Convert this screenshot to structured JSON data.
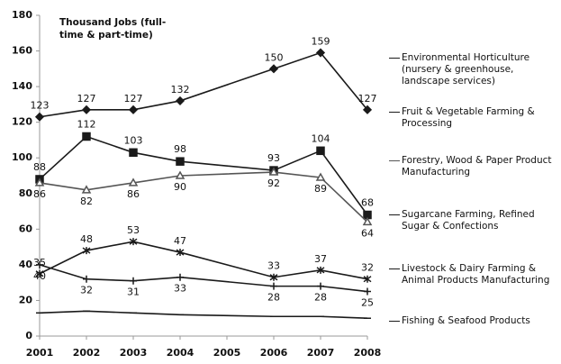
{
  "chart_data": {
    "type": "line",
    "annotation": "Thousand Jobs (full-time & part-time)",
    "x": [
      2001,
      2002,
      2003,
      2004,
      2006,
      2007,
      2008
    ],
    "xlim": [
      2001,
      2008
    ],
    "xticks": [
      2001,
      2002,
      2003,
      2004,
      2005,
      2006,
      2007,
      2008
    ],
    "ylim": [
      0,
      180
    ],
    "yticks": [
      0,
      20,
      40,
      60,
      80,
      100,
      120,
      140,
      160,
      180
    ],
    "grid": false,
    "series": [
      {
        "name": "Environmental Horticulture (nursery & greenhouse, landscape services)",
        "color": "#1a1a1a",
        "marker": "diamond",
        "data_labels": true,
        "values": [
          123,
          127,
          127,
          132,
          150,
          159,
          127
        ]
      },
      {
        "name": "Fruit & Vegetable Farming & Processing",
        "color": "#1a1a1a",
        "marker": "square",
        "data_labels": true,
        "values": [
          88,
          112,
          103,
          98,
          93,
          104,
          68
        ]
      },
      {
        "name": "Forestry, Wood & Paper Product Manufacturing",
        "color": "#555555",
        "marker": "triangle",
        "data_labels": true,
        "values": [
          86,
          82,
          86,
          90,
          92,
          89,
          64
        ]
      },
      {
        "name": "Sugarcane Farming, Refined Sugar & Confections",
        "color": "#1a1a1a",
        "marker": "star",
        "data_labels": true,
        "values": [
          35,
          48,
          53,
          47,
          33,
          37,
          32
        ]
      },
      {
        "name": "Livestock & Dairy Farming & Animal Products Manufacturing",
        "color": "#1a1a1a",
        "marker": "cross",
        "data_labels": true,
        "values": [
          40,
          32,
          31,
          33,
          28,
          28,
          25
        ]
      },
      {
        "name": "Fishing & Seafood Products",
        "color": "#1a1a1a",
        "marker": "dash",
        "data_labels": false,
        "values": [
          13,
          14,
          13,
          12,
          11,
          11,
          10
        ]
      }
    ]
  }
}
